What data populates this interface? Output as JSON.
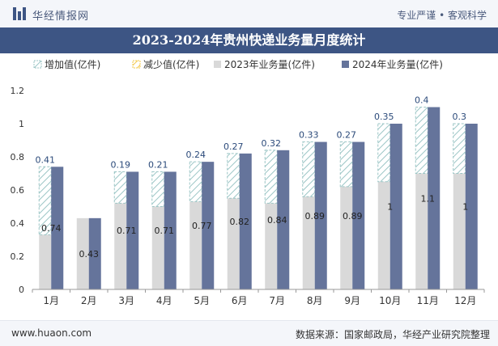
{
  "header": {
    "brand": "华经情报网",
    "tagline": "专业严谨 • 客观科学"
  },
  "title": "2023-2024年贵州快递业务量月度统计",
  "footer": {
    "site": "www.huaon.com",
    "source": "数据来源：国家邮政局，华经产业研究院整理"
  },
  "colors": {
    "brand_blue": "#3d5584",
    "bar_2023": "#d9d9d9",
    "bar_2024": "#65749b",
    "increase_hatch": "#9cc6c6",
    "decrease_hatch": "#f3c94a"
  },
  "chart_data": {
    "type": "bar",
    "categories": [
      "1月",
      "2月",
      "3月",
      "4月",
      "5月",
      "6月",
      "7月",
      "8月",
      "9月",
      "10月",
      "11月",
      "12月"
    ],
    "series": [
      {
        "name": "2023年业务量(亿件)",
        "values": [
          0.33,
          0.43,
          0.52,
          0.5,
          0.53,
          0.55,
          0.52,
          0.56,
          0.62,
          0.65,
          0.7,
          0.7
        ]
      },
      {
        "name": "2024年业务量(亿件)",
        "values": [
          0.74,
          0.43,
          0.71,
          0.71,
          0.77,
          0.82,
          0.84,
          0.89,
          0.89,
          1,
          1.1,
          1
        ]
      },
      {
        "name": "增加值(亿件)",
        "values": [
          0.41,
          null,
          0.19,
          0.21,
          0.24,
          0.27,
          0.32,
          0.33,
          0.27,
          0.35,
          0.4,
          0.3
        ]
      },
      {
        "name": "减少值(亿件)",
        "values": [
          null,
          null,
          null,
          null,
          null,
          null,
          null,
          null,
          null,
          null,
          null,
          null
        ]
      }
    ],
    "bar_labels_2024": [
      "0.74",
      "0.43",
      "0.71",
      "0.71",
      "0.77",
      "0.82",
      "0.84",
      "0.89",
      "0.89",
      "1",
      "1.1",
      "1"
    ],
    "increase_labels": [
      "0.41",
      "",
      "0.19",
      "0.21",
      "0.24",
      "0.27",
      "0.32",
      "0.33",
      "0.27",
      "0.35",
      "0.4",
      "0.3"
    ],
    "yticks": [
      "0",
      "0.2",
      "0.4",
      "0.6",
      "0.8",
      "1",
      "1.2"
    ],
    "ylim": [
      0,
      1.2
    ],
    "grid": false,
    "legend_position": "top"
  }
}
